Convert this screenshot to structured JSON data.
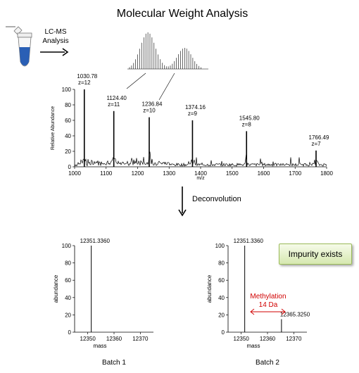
{
  "title": "Molecular Weight Analysis",
  "lcms_label_line1": "LC-MS",
  "lcms_label_line2": "Analysis",
  "deconvolution_label": "Deconvolution",
  "impurity_label": "Impurity exists",
  "methylation_label": "Methylation",
  "methylation_delta": "14 Da",
  "colors": {
    "annotation_red": "#d00000",
    "impurity_border": "#9bbb59",
    "tube_blue": "#2a5fb5"
  },
  "chart_data": [
    {
      "type": "line",
      "xlabel": "m/z",
      "ylabel": "Relative Abundance",
      "xlim": [
        1000,
        1800
      ],
      "ylim": [
        0,
        100
      ],
      "x_ticks": [
        1000,
        1100,
        1200,
        1300,
        1400,
        1500,
        1600,
        1700,
        1800
      ],
      "y_ticks": [
        0,
        20,
        40,
        60,
        80,
        100
      ],
      "peaks": [
        {
          "x": 1030.78,
          "y": 100,
          "label": "1030.78",
          "charge": "z=12"
        },
        {
          "x": 1124.4,
          "y": 72,
          "label": "1124.40",
          "charge": "z=11"
        },
        {
          "x": 1236.84,
          "y": 64,
          "label": "1236.84",
          "charge": "z=10"
        },
        {
          "x": 1374.16,
          "y": 60,
          "label": "1374.16",
          "charge": "z=9"
        },
        {
          "x": 1545.8,
          "y": 46,
          "label": "1545.80",
          "charge": "z=8"
        },
        {
          "x": 1766.49,
          "y": 21,
          "label": "1766.49",
          "charge": "z=7"
        }
      ]
    },
    {
      "type": "line",
      "title": "Batch 1",
      "xlabel": "mass",
      "ylabel": "abundance",
      "xlim": [
        12345,
        12375
      ],
      "ylim": [
        0,
        100
      ],
      "x_ticks": [
        12350,
        12360,
        12370
      ],
      "y_ticks": [
        0,
        20,
        40,
        60,
        80,
        100
      ],
      "peaks": [
        {
          "x": 12351.336,
          "y": 100,
          "label": "12351.3360"
        }
      ]
    },
    {
      "type": "line",
      "title": "Batch 2",
      "xlabel": "mass",
      "ylabel": "abundance",
      "xlim": [
        12345,
        12375
      ],
      "ylim": [
        0,
        100
      ],
      "x_ticks": [
        12350,
        12360,
        12370
      ],
      "y_ticks": [
        0,
        20,
        40,
        60,
        80,
        100
      ],
      "peaks": [
        {
          "x": 12351.336,
          "y": 100,
          "label": "12351.3360"
        },
        {
          "x": 12365.325,
          "y": 15,
          "label": "12365.3250"
        }
      ]
    }
  ]
}
